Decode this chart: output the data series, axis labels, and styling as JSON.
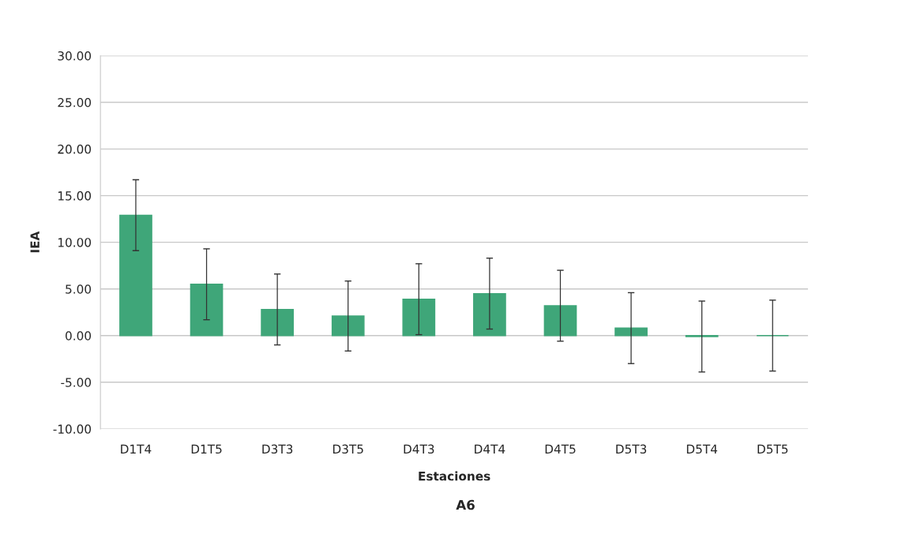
{
  "chart_data": {
    "type": "bar",
    "xlabel": "Estaciones",
    "ylabel": "IEA",
    "categories": [
      "D1T4",
      "D1T5",
      "D3T3",
      "D3T5",
      "D4T3",
      "D4T4",
      "D4T5",
      "D5T3",
      "D5T4",
      "D5T5"
    ],
    "values": [
      12.9,
      5.5,
      2.8,
      2.1,
      3.9,
      4.5,
      3.2,
      0.8,
      -0.1,
      0.0
    ],
    "errors": [
      3.8,
      3.8,
      3.8,
      3.75,
      3.8,
      3.8,
      3.8,
      3.8,
      3.8,
      3.8
    ],
    "color": "#3fa679",
    "ylim": [
      -10,
      30
    ],
    "yticks": [
      {
        "value": -10,
        "label": "-10.00"
      },
      {
        "value": -5,
        "label": "-5.00"
      },
      {
        "value": 0,
        "label": "0.00"
      },
      {
        "value": 5,
        "label": "5.00"
      },
      {
        "value": 10,
        "label": "10.00"
      },
      {
        "value": 15,
        "label": "15.00"
      },
      {
        "value": 20,
        "label": "20.00"
      },
      {
        "value": 25,
        "label": "25.00"
      },
      {
        "value": 30,
        "label": "30.00"
      }
    ],
    "grid": "y",
    "annotations": [
      "A6"
    ]
  }
}
